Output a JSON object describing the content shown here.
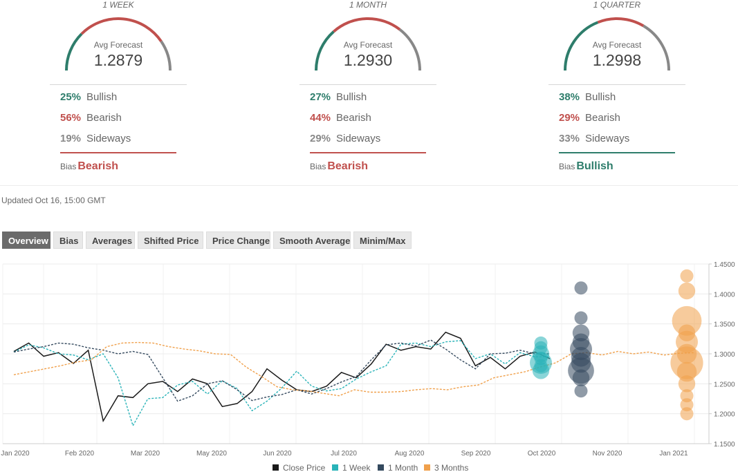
{
  "forecasts": [
    {
      "horizon": "1 WEEK",
      "avg_label": "Avg Forecast",
      "avg": "1.2879",
      "bullish": "25%",
      "bullish_label": "Bullish",
      "bearish": "56%",
      "bearish_label": "Bearish",
      "sideways": "19%",
      "sideways_label": "Sideways",
      "bias_label": "Bias",
      "bias": "Bearish",
      "bias_color": "#c0504d"
    },
    {
      "horizon": "1 MONTH",
      "avg_label": "Avg Forecast",
      "avg": "1.2930",
      "bullish": "27%",
      "bullish_label": "Bullish",
      "bearish": "44%",
      "bearish_label": "Bearish",
      "sideways": "29%",
      "sideways_label": "Sideways",
      "bias_label": "Bias",
      "bias": "Bearish",
      "bias_color": "#c0504d"
    },
    {
      "horizon": "1 QUARTER",
      "avg_label": "Avg Forecast",
      "avg": "1.2998",
      "bullish": "38%",
      "bullish_label": "Bullish",
      "bearish": "29%",
      "bearish_label": "Bearish",
      "sideways": "33%",
      "sideways_label": "Sideways",
      "bias_label": "Bias",
      "bias": "Bullish",
      "bias_color": "#2e7d6b"
    }
  ],
  "colors": {
    "bullish": "#2e7d6b",
    "bearish": "#c0504d",
    "sideways": "#888888",
    "close": "#1a1a1a",
    "week": "#29b3b8",
    "month": "#34495e",
    "quarter": "#f0a04b"
  },
  "updated": "Updated Oct 16, 15:00 GMT",
  "tabs": [
    {
      "label": "Overview",
      "active": true
    },
    {
      "label": "Bias",
      "active": false
    },
    {
      "label": "Averages",
      "active": false
    },
    {
      "label": "Shifted Price",
      "active": false
    },
    {
      "label": "Price Change",
      "active": false
    },
    {
      "label": "Smooth Average",
      "active": false
    },
    {
      "label": "Minim/Max",
      "active": false
    }
  ],
  "chart_data": {
    "type": "line",
    "y_ticks": [
      "1.4500",
      "1.4000",
      "1.3500",
      "1.3000",
      "1.2500",
      "1.2000",
      "1.1500"
    ],
    "ylim": [
      1.15,
      1.45
    ],
    "x_ticks": [
      "Jan 2020",
      "Feb 2020",
      "Mar 2020",
      "May 2020",
      "Jun 2020",
      "Jul 2020",
      "Aug 2020",
      "Sep 2020",
      "Oct 2020",
      "Nov 2020",
      "Jan 2021"
    ],
    "grid": true,
    "legend_position": "bottom",
    "series": [
      {
        "name": "Close Price",
        "key": "close",
        "values": [
          1.304,
          1.318,
          1.296,
          1.302,
          1.284,
          1.306,
          1.188,
          1.23,
          1.227,
          1.25,
          1.254,
          1.237,
          1.258,
          1.25,
          1.212,
          1.217,
          1.237,
          1.275,
          1.256,
          1.24,
          1.237,
          1.246,
          1.269,
          1.26,
          1.283,
          1.316,
          1.306,
          1.312,
          1.308,
          1.336,
          1.326,
          1.28,
          1.294,
          1.275,
          1.296,
          1.303,
          1.292
        ]
      },
      {
        "name": "1 Week",
        "key": "week",
        "values": [
          1.303,
          1.315,
          1.31,
          1.3,
          1.298,
          1.29,
          1.3,
          1.26,
          1.18,
          1.225,
          1.227,
          1.248,
          1.254,
          1.233,
          1.255,
          1.242,
          1.205,
          1.221,
          1.243,
          1.271,
          1.246,
          1.238,
          1.242,
          1.258,
          1.27,
          1.28,
          1.316,
          1.318,
          1.312,
          1.32,
          1.322,
          1.292,
          1.3,
          1.283,
          1.302,
          1.295,
          1.295
        ]
      },
      {
        "name": "1 Month",
        "key": "month",
        "values": [
          1.303,
          1.308,
          1.312,
          1.318,
          1.316,
          1.31,
          1.306,
          1.3,
          1.304,
          1.299,
          1.26,
          1.221,
          1.23,
          1.25,
          1.255,
          1.24,
          1.222,
          1.228,
          1.232,
          1.24,
          1.233,
          1.242,
          1.253,
          1.262,
          1.29,
          1.315,
          1.318,
          1.313,
          1.323,
          1.308,
          1.29,
          1.275,
          1.3,
          1.301,
          1.306,
          1.3,
          1.3
        ]
      },
      {
        "name": "3 Months",
        "key": "quarter",
        "values": [
          1.265,
          1.27,
          1.275,
          1.28,
          1.286,
          1.29,
          1.312,
          1.318,
          1.319,
          1.318,
          1.312,
          1.308,
          1.305,
          1.3,
          1.299,
          1.278,
          1.262,
          1.245,
          1.24,
          1.238,
          1.234,
          1.23,
          1.24,
          1.236,
          1.236,
          1.237,
          1.24,
          1.242,
          1.24,
          1.245,
          1.248,
          1.26,
          1.265,
          1.27,
          1.278,
          1.285,
          1.3,
          1.302,
          1.298,
          1.304,
          1.3,
          1.303,
          1.298,
          1.301,
          1.302
        ]
      }
    ],
    "forecast_bubbles": [
      {
        "key": "week",
        "values": [
          1.318,
          1.31,
          1.3,
          1.292,
          1.285,
          1.28,
          1.272
        ],
        "weights": [
          1,
          1,
          2,
          1,
          4,
          1,
          2
        ]
      },
      {
        "key": "month",
        "values": [
          1.41,
          1.36,
          1.335,
          1.32,
          1.308,
          1.295,
          1.285,
          1.272,
          1.26,
          1.238
        ],
        "weights": [
          1,
          1,
          2,
          2,
          4,
          3,
          3,
          6,
          2,
          1
        ]
      },
      {
        "key": "quarter",
        "values": [
          1.43,
          1.405,
          1.355,
          1.335,
          1.32,
          1.3,
          1.285,
          1.27,
          1.25,
          1.23,
          1.215,
          1.2
        ],
        "weights": [
          1,
          2,
          8,
          2,
          4,
          3,
          10,
          3,
          2,
          1,
          1,
          1
        ]
      }
    ]
  }
}
